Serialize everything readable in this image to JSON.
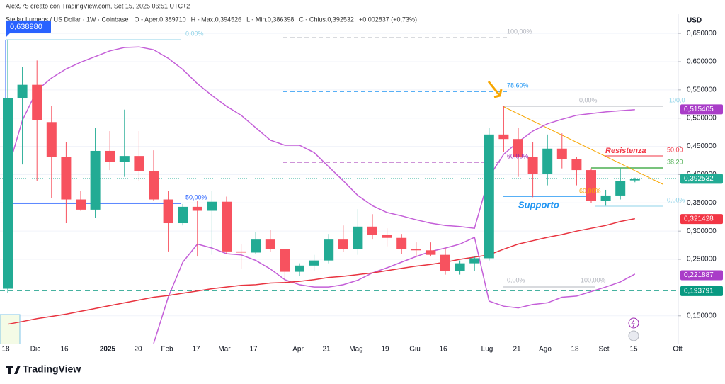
{
  "header": {
    "author_line": "Alex975 creato con TradingView.com, Set 15, 2025 06:51 UTC+2",
    "symbol": "Stellar Lumens / US Dollar · 1W · Coinbase",
    "ohlc_text": [
      "O ‑ Aper.0,389710",
      "H ‑ Max.0,394526",
      "L ‑ Min.0,386398",
      "C ‑ Chius.0,392532",
      "+0,002837 (+0,73%)"
    ]
  },
  "footer": "TradingView",
  "chart_data": {
    "type": "candlestick",
    "ylabel": "USD",
    "ylim": [
      0.082,
      0.684
    ],
    "yticks": [
      {
        "value": 0.65,
        "label": "0,650000"
      },
      {
        "value": 0.6,
        "label": "0,600000"
      },
      {
        "value": 0.55,
        "label": "0,550000"
      },
      {
        "value": 0.5,
        "label": "0,500000"
      },
      {
        "value": 0.45,
        "label": "0,450000"
      },
      {
        "value": 0.4,
        "label": "0,400000"
      },
      {
        "value": 0.35,
        "label": "0,350000"
      },
      {
        "value": 0.3,
        "label": "0,300000"
      },
      {
        "value": 0.25,
        "label": "0,250000"
      },
      {
        "value": 0.15,
        "label": "0,150000"
      }
    ],
    "grid": true,
    "xtick_labels": [
      "18",
      "Dic",
      "16",
      "2025",
      "20",
      "Feb",
      "17",
      "Mar",
      "17",
      "Apr",
      "21",
      "Mag",
      "19",
      "Giu",
      "16",
      "Lug",
      "21",
      "Ago",
      "18",
      "Set",
      "15",
      "Ott"
    ],
    "up_color": "#22ab94",
    "down_color": "#f7525f",
    "open": [
      0.198,
      0.536,
      0.559,
      0.493,
      0.431,
      0.356,
      0.338,
      0.442,
      0.423,
      0.433,
      0.406,
      0.356,
      0.314,
      0.343,
      0.336,
      0.352,
      0.264,
      0.262,
      0.285,
      0.268,
      0.228,
      0.239,
      0.248,
      0.285,
      0.268,
      0.308,
      0.293,
      0.288,
      0.268,
      0.266,
      0.258,
      0.23,
      0.243,
      0.252,
      0.471,
      0.463,
      0.431,
      0.401,
      0.446,
      0.427,
      0.408,
      0.353,
      0.363,
      0.38971
    ],
    "high": [
      0.639,
      0.59,
      0.602,
      0.521,
      0.458,
      0.371,
      0.483,
      0.477,
      0.515,
      0.477,
      0.443,
      0.371,
      0.348,
      0.353,
      0.371,
      0.361,
      0.277,
      0.298,
      0.302,
      0.268,
      0.243,
      0.258,
      0.295,
      0.31,
      0.339,
      0.33,
      0.305,
      0.295,
      0.28,
      0.28,
      0.27,
      0.248,
      0.255,
      0.483,
      0.521,
      0.483,
      0.458,
      0.471,
      0.473,
      0.431,
      0.411,
      0.373,
      0.411,
      0.394526
    ],
    "low": [
      0.19,
      0.418,
      0.389,
      0.358,
      0.314,
      0.336,
      0.323,
      0.408,
      0.396,
      0.389,
      0.353,
      0.264,
      0.31,
      0.255,
      0.258,
      0.26,
      0.233,
      0.26,
      0.263,
      0.208,
      0.22,
      0.23,
      0.243,
      0.263,
      0.258,
      0.285,
      0.273,
      0.26,
      0.255,
      0.255,
      0.223,
      0.223,
      0.23,
      0.248,
      0.44,
      0.396,
      0.36,
      0.381,
      0.411,
      0.381,
      0.35,
      0.345,
      0.356,
      0.386398
    ],
    "close": [
      0.536,
      0.559,
      0.496,
      0.431,
      0.356,
      0.338,
      0.442,
      0.423,
      0.433,
      0.406,
      0.356,
      0.314,
      0.343,
      0.336,
      0.352,
      0.264,
      0.262,
      0.285,
      0.268,
      0.228,
      0.239,
      0.248,
      0.285,
      0.268,
      0.308,
      0.293,
      0.288,
      0.268,
      0.266,
      0.258,
      0.23,
      0.243,
      0.252,
      0.471,
      0.463,
      0.431,
      0.401,
      0.446,
      0.427,
      0.408,
      0.353,
      0.363,
      0.389,
      0.392532
    ],
    "lines": [
      {
        "color": "#c45fd8",
        "values": [
          0.408,
          0.496,
          0.549,
          0.571,
          0.587,
          0.599,
          0.609,
          0.619,
          0.625,
          0.626,
          0.621,
          0.606,
          0.586,
          0.561,
          0.54,
          0.521,
          0.505,
          0.483,
          0.461,
          0.452,
          0.452,
          0.439,
          0.414,
          0.389,
          0.363,
          0.345,
          0.333,
          0.327,
          0.32,
          0.314,
          0.31,
          0.308,
          0.305,
          0.396,
          0.436,
          0.458,
          0.477,
          0.49,
          0.498,
          0.505,
          0.508,
          0.511,
          0.513,
          0.515
        ]
      },
      {
        "color": "#c45fd8",
        "values": [
          null,
          null,
          null,
          null,
          null,
          null,
          null,
          null,
          null,
          null,
          0.101,
          0.183,
          0.245,
          0.277,
          0.27,
          0.26,
          0.258,
          0.248,
          0.233,
          0.214,
          0.205,
          0.201,
          0.201,
          0.205,
          0.213,
          0.226,
          0.235,
          0.245,
          0.255,
          0.264,
          0.27,
          0.277,
          0.289,
          0.176,
          0.167,
          0.164,
          0.17,
          0.173,
          0.183,
          0.185,
          0.193,
          0.201,
          0.21,
          0.224
        ]
      },
      {
        "color": "#e8333f",
        "values": [
          0.135,
          0.14,
          0.145,
          0.149,
          0.153,
          0.158,
          0.163,
          0.168,
          0.173,
          0.178,
          0.183,
          0.186,
          0.19,
          0.194,
          0.198,
          0.201,
          0.204,
          0.205,
          0.208,
          0.209,
          0.211,
          0.214,
          0.218,
          0.22,
          0.223,
          0.226,
          0.23,
          0.234,
          0.238,
          0.241,
          0.245,
          0.25,
          0.254,
          0.258,
          0.268,
          0.277,
          0.283,
          0.289,
          0.294,
          0.3,
          0.305,
          0.31,
          0.317,
          0.322
        ]
      }
    ],
    "price_tags": [
      {
        "value": 0.515405,
        "label": "0,515405",
        "color": "#a93dc8"
      },
      {
        "value": 0.392532,
        "label": "0,392532",
        "color": "#22ab94"
      },
      {
        "value": 0.321428,
        "label": "0,321428",
        "color": "#f23645"
      },
      {
        "value": 0.221887,
        "label": "0,221887",
        "color": "#a93dc8"
      },
      {
        "value": 0.193791,
        "label": "0,193791",
        "color": "#089981"
      }
    ],
    "high_tag": {
      "value": 0.63898,
      "label": "0,638980",
      "color": "#2962ff"
    },
    "annotations": [
      {
        "text": "0,00%",
        "color": "#8fd3e8"
      },
      {
        "text": "50,00%",
        "color": "#2962ff"
      },
      {
        "text": "100,00%",
        "color": "#b2b5be"
      },
      {
        "text": "78,60%",
        "color": "#2196f3"
      },
      {
        "text": "0,00%",
        "color": "#b2b5be"
      },
      {
        "text": "100,0",
        "color": "#8fd3e8"
      },
      {
        "text": "60,00%",
        "color": "#9c27b0"
      },
      {
        "text": "Resistenza",
        "color": "#f23645"
      },
      {
        "text": "50,00",
        "color": "#f23645"
      },
      {
        "text": "38,20",
        "color": "#4caf50"
      },
      {
        "text": "60,00%",
        "color": "#f7a600"
      },
      {
        "text": "Supporto",
        "color": "#2196f3"
      },
      {
        "text": "0,00%",
        "color": "#8fd3e8"
      },
      {
        "text": "0,00%",
        "color": "#b2b5be"
      },
      {
        "text": "100,00%",
        "color": "#b2b5be"
      }
    ]
  }
}
